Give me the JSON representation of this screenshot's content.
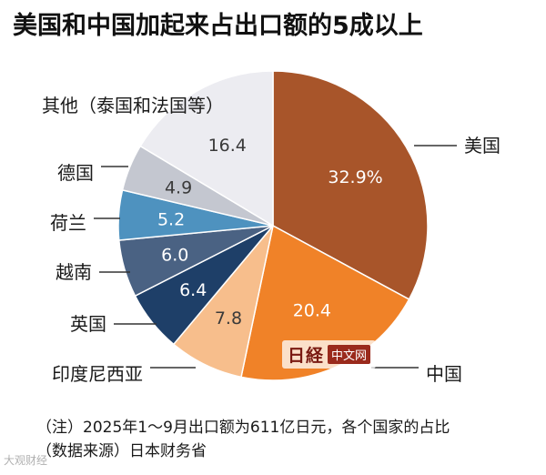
{
  "title": "美国和中国加起来占出口额的5成以上",
  "chart_data": {
    "type": "pie",
    "unit": "%",
    "slices": [
      {
        "label": "美国",
        "value": 32.9,
        "value_text": "32.9%",
        "color": "#A8552A",
        "text_color": "#ffffff"
      },
      {
        "label": "中国",
        "value": 20.4,
        "value_text": "20.4",
        "color": "#F08228",
        "text_color": "#ffffff"
      },
      {
        "label": "印度尼西亚",
        "value": 7.8,
        "value_text": "7.8",
        "color": "#F7BE8C",
        "text_color": "#3a3a3a"
      },
      {
        "label": "英国",
        "value": 6.4,
        "value_text": "6.4",
        "color": "#1E3F68",
        "text_color": "#ffffff"
      },
      {
        "label": "越南",
        "value": 6.0,
        "value_text": "6.0",
        "color": "#4A6283",
        "text_color": "#ffffff"
      },
      {
        "label": "荷兰",
        "value": 5.2,
        "value_text": "5.2",
        "color": "#4E92BF",
        "text_color": "#ffffff"
      },
      {
        "label": "德国",
        "value": 4.9,
        "value_text": "4.9",
        "color": "#C4C7D0",
        "text_color": "#3a3a3a"
      },
      {
        "label": "其他（泰国和法国等）",
        "value": 16.4,
        "value_text": "16.4",
        "color": "#ECECF1",
        "text_color": "#3a3a3a"
      }
    ]
  },
  "notes": {
    "line1": "（注）2025年1～9月出口额为611亿日元，各个国家的占比",
    "line2": "（数据来源）日本财务省"
  },
  "watermark": {
    "logo": "日経",
    "text": "中文网",
    "corner": "大观财经"
  }
}
